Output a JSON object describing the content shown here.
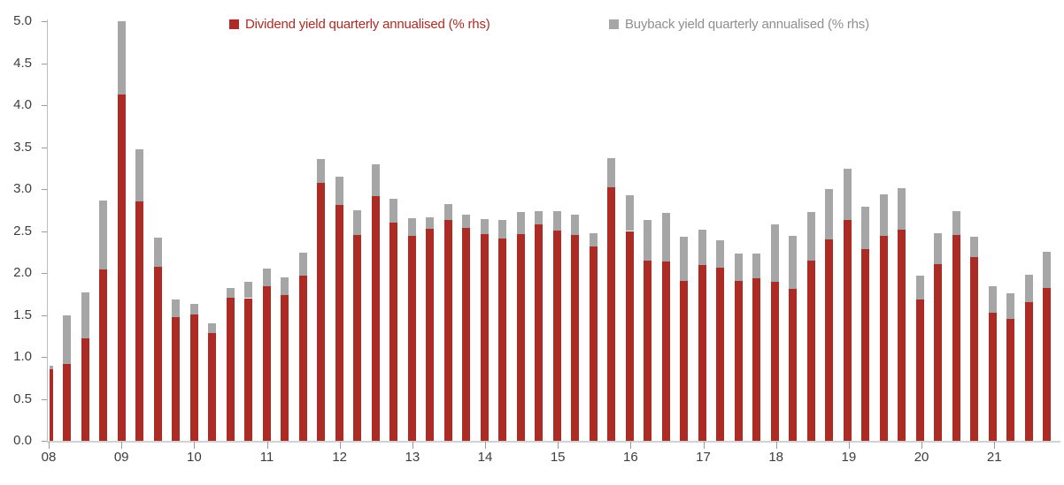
{
  "legend": [
    {
      "label": "Dividend yield quarterly annualised (% rhs)",
      "color": "#AC2B24"
    },
    {
      "label": "Buyback yield quarterly annualised (% rhs)",
      "color": "#A6A6A6"
    }
  ],
  "chart_data": {
    "type": "bar",
    "stacked": true,
    "title": "",
    "xlabel": "",
    "ylabel": "",
    "ylim": [
      0.0,
      5.0
    ],
    "y_tick_step": 0.5,
    "y_tick_labels": [
      "0.0",
      "0.5",
      "1.0",
      "1.5",
      "2.0",
      "2.5",
      "3.0",
      "3.5",
      "4.0",
      "4.5",
      "5.0"
    ],
    "x_tick_labels": [
      "08",
      "09",
      "10",
      "11",
      "12",
      "13",
      "14",
      "15",
      "16",
      "17",
      "18",
      "19",
      "20",
      "21"
    ],
    "grid": false,
    "legend_position": "top-center",
    "first_bar_clipped_by_axis": true,
    "quarters": [
      "08Q1",
      "08Q2",
      "08Q3",
      "08Q4",
      "09Q1",
      "09Q2",
      "09Q3",
      "09Q4",
      "10Q1",
      "10Q2",
      "10Q3",
      "10Q4",
      "11Q1",
      "11Q2",
      "11Q3",
      "11Q4",
      "12Q1",
      "12Q2",
      "12Q3",
      "12Q4",
      "13Q1",
      "13Q2",
      "13Q3",
      "13Q4",
      "14Q1",
      "14Q2",
      "14Q3",
      "14Q4",
      "15Q1",
      "15Q2",
      "15Q3",
      "15Q4",
      "16Q1",
      "16Q2",
      "16Q3",
      "16Q4",
      "17Q1",
      "17Q2",
      "17Q3",
      "17Q4",
      "18Q1",
      "18Q2",
      "18Q3",
      "18Q4",
      "19Q1",
      "19Q2",
      "19Q3",
      "19Q4",
      "20Q1",
      "20Q2",
      "20Q3",
      "20Q4",
      "21Q1",
      "21Q2",
      "21Q3",
      "21Q4"
    ],
    "series": [
      {
        "name": "Dividend yield quarterly annualised (% rhs)",
        "color": "#AC2B24",
        "values": [
          0.85,
          0.92,
          1.22,
          2.04,
          4.13,
          2.85,
          2.07,
          1.47,
          1.51,
          1.28,
          1.71,
          1.7,
          1.84,
          1.74,
          1.97,
          3.07,
          2.81,
          2.45,
          2.92,
          2.6,
          2.44,
          2.53,
          2.63,
          2.54,
          2.46,
          2.41,
          2.46,
          2.58,
          2.51,
          2.45,
          2.32,
          3.02,
          2.5,
          2.15,
          2.14,
          1.91,
          2.09,
          2.06,
          1.91,
          1.94,
          1.89,
          1.81,
          2.15,
          2.4,
          2.63,
          2.28,
          2.44,
          2.52,
          1.68,
          2.11,
          2.45,
          2.19,
          1.53,
          1.45,
          1.65,
          1.82
        ]
      },
      {
        "name": "Buyback yield quarterly annualised (% rhs)",
        "color": "#A6A6A6",
        "values": [
          0.05,
          0.57,
          0.55,
          0.82,
          0.87,
          0.62,
          0.35,
          0.21,
          0.12,
          0.12,
          0.11,
          0.19,
          0.21,
          0.21,
          0.27,
          0.29,
          0.34,
          0.3,
          0.37,
          0.28,
          0.21,
          0.13,
          0.19,
          0.16,
          0.18,
          0.22,
          0.27,
          0.16,
          0.23,
          0.24,
          0.15,
          0.35,
          0.43,
          0.48,
          0.58,
          0.52,
          0.43,
          0.33,
          0.32,
          0.29,
          0.69,
          0.63,
          0.58,
          0.6,
          0.61,
          0.51,
          0.5,
          0.49,
          0.29,
          0.36,
          0.29,
          0.24,
          0.31,
          0.31,
          0.33,
          0.43
        ]
      }
    ]
  }
}
